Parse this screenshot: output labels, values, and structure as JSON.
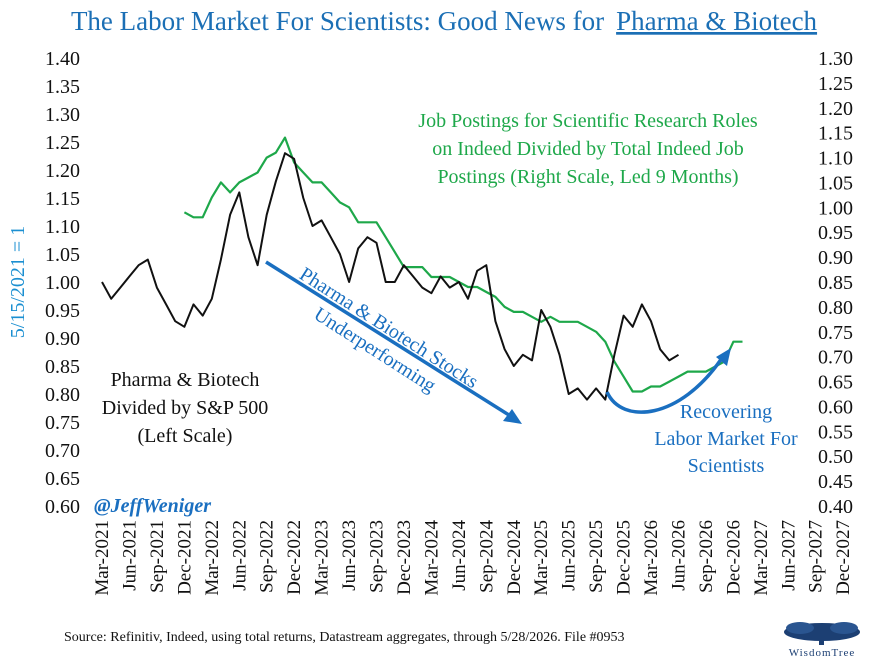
{
  "header": {
    "title": "The Labor Market For Scientists: Good News for",
    "title_link": "Pharma & Biotech"
  },
  "axes": {
    "left_label": "5/15/2021 = 1",
    "left_ticks": [
      "1.40",
      "1.35",
      "1.30",
      "1.25",
      "1.20",
      "1.15",
      "1.10",
      "1.05",
      "1.00",
      "0.95",
      "0.90",
      "0.85",
      "0.80",
      "0.75",
      "0.70",
      "0.65",
      "0.60"
    ],
    "right_ticks": [
      "1.30",
      "1.25",
      "1.20",
      "1.15",
      "1.10",
      "1.05",
      "1.00",
      "0.95",
      "0.90",
      "0.85",
      "0.80",
      "0.75",
      "0.70",
      "0.65",
      "0.60",
      "0.55",
      "0.50",
      "0.45",
      "0.40"
    ],
    "x_ticks": [
      "Mar-2021",
      "Jun-2021",
      "Sep-2021",
      "Dec-2021",
      "Mar-2022",
      "Jun-2022",
      "Sep-2022",
      "Dec-2022",
      "Mar-2023",
      "Jun-2023",
      "Sep-2023",
      "Dec-2023",
      "Mar-2024",
      "Jun-2024",
      "Sep-2024",
      "Dec-2024",
      "Mar-2025",
      "Jun-2025",
      "Sep-2025",
      "Dec-2025",
      "Mar-2026",
      "Jun-2026",
      "Sep-2026",
      "Dec-2026",
      "Mar-2027",
      "Jun-2027",
      "Sep-2027",
      "Dec-2027"
    ]
  },
  "annotations": {
    "black_label": [
      "Pharma & Biotech",
      "Divided by S&P 500",
      "(Left Scale)"
    ],
    "green_label": [
      "Job Postings for Scientific Research Roles",
      "on Indeed Divided by Total Indeed Job",
      "Postings (Right Scale, Led 9 Months)"
    ],
    "arrow_label": [
      "Pharma & Biotech Stocks",
      "Underperforming"
    ],
    "recover_label": [
      "Recovering",
      "Labor Market For",
      "Scientists"
    ],
    "handle": "@JeffWeniger"
  },
  "footer": {
    "source": "Source: Refinitiv, Indeed, using total returns, Datastream aggregates, through 5/28/2026. File #0953",
    "logo": "WisdomTree"
  },
  "colors": {
    "title": "#1b6fb5",
    "pharma_series": "#111111",
    "jobs_series": "#1ea84a",
    "arrows": "#1a6fc0"
  },
  "chart_data": {
    "type": "line",
    "x_unit": "month",
    "x_range": [
      "2021-03",
      "2027-12"
    ],
    "left_axis": {
      "ylim": [
        0.6,
        1.4
      ],
      "label": "5/15/2021 = 1"
    },
    "right_axis": {
      "ylim": [
        0.4,
        1.3
      ]
    },
    "grid": false,
    "series": [
      {
        "name": "Pharma & Biotech Divided by S&P 500 (Left Scale)",
        "axis": "left",
        "color": "#111111",
        "points": [
          [
            "2021-03",
            1.0
          ],
          [
            "2021-04",
            0.97
          ],
          [
            "2021-05",
            0.99
          ],
          [
            "2021-06",
            1.01
          ],
          [
            "2021-07",
            1.03
          ],
          [
            "2021-08",
            1.04
          ],
          [
            "2021-09",
            0.99
          ],
          [
            "2021-10",
            0.96
          ],
          [
            "2021-11",
            0.93
          ],
          [
            "2021-12",
            0.92
          ],
          [
            "2022-01",
            0.96
          ],
          [
            "2022-02",
            0.94
          ],
          [
            "2022-03",
            0.97
          ],
          [
            "2022-04",
            1.04
          ],
          [
            "2022-05",
            1.12
          ],
          [
            "2022-06",
            1.16
          ],
          [
            "2022-07",
            1.08
          ],
          [
            "2022-08",
            1.03
          ],
          [
            "2022-09",
            1.12
          ],
          [
            "2022-10",
            1.18
          ],
          [
            "2022-11",
            1.23
          ],
          [
            "2022-12",
            1.22
          ],
          [
            "2023-01",
            1.15
          ],
          [
            "2023-02",
            1.1
          ],
          [
            "2023-03",
            1.11
          ],
          [
            "2023-04",
            1.08
          ],
          [
            "2023-05",
            1.05
          ],
          [
            "2023-06",
            1.0
          ],
          [
            "2023-07",
            1.06
          ],
          [
            "2023-08",
            1.08
          ],
          [
            "2023-09",
            1.07
          ],
          [
            "2023-10",
            1.0
          ],
          [
            "2023-11",
            1.0
          ],
          [
            "2023-12",
            1.03
          ],
          [
            "2024-01",
            1.01
          ],
          [
            "2024-02",
            0.99
          ],
          [
            "2024-03",
            0.98
          ],
          [
            "2024-04",
            1.01
          ],
          [
            "2024-05",
            0.99
          ],
          [
            "2024-06",
            1.0
          ],
          [
            "2024-07",
            0.97
          ],
          [
            "2024-08",
            1.02
          ],
          [
            "2024-09",
            1.03
          ],
          [
            "2024-10",
            0.93
          ],
          [
            "2024-11",
            0.88
          ],
          [
            "2024-12",
            0.85
          ],
          [
            "2025-01",
            0.87
          ],
          [
            "2025-02",
            0.86
          ],
          [
            "2025-03",
            0.95
          ],
          [
            "2025-04",
            0.92
          ],
          [
            "2025-05",
            0.87
          ],
          [
            "2025-06",
            0.8
          ],
          [
            "2025-07",
            0.81
          ],
          [
            "2025-08",
            0.79
          ],
          [
            "2025-09",
            0.81
          ],
          [
            "2025-10",
            0.79
          ],
          [
            "2025-11",
            0.87
          ],
          [
            "2025-12",
            0.94
          ],
          [
            "2026-01",
            0.92
          ],
          [
            "2026-02",
            0.96
          ],
          [
            "2026-03",
            0.93
          ],
          [
            "2026-04",
            0.88
          ],
          [
            "2026-05",
            0.86
          ],
          [
            "2026-06",
            0.87
          ]
        ]
      },
      {
        "name": "Job Postings for Scientific Research Roles on Indeed Divided by Total Indeed Job Postings (Right Scale, Led 9 Months)",
        "axis": "right",
        "color": "#1ea84a",
        "points": [
          [
            "2021-12",
            0.99
          ],
          [
            "2022-01",
            0.98
          ],
          [
            "2022-02",
            0.98
          ],
          [
            "2022-03",
            1.02
          ],
          [
            "2022-04",
            1.05
          ],
          [
            "2022-05",
            1.03
          ],
          [
            "2022-06",
            1.05
          ],
          [
            "2022-07",
            1.06
          ],
          [
            "2022-08",
            1.07
          ],
          [
            "2022-09",
            1.1
          ],
          [
            "2022-10",
            1.11
          ],
          [
            "2022-11",
            1.14
          ],
          [
            "2022-12",
            1.09
          ],
          [
            "2023-01",
            1.07
          ],
          [
            "2023-02",
            1.05
          ],
          [
            "2023-03",
            1.05
          ],
          [
            "2023-04",
            1.03
          ],
          [
            "2023-05",
            1.01
          ],
          [
            "2023-06",
            1.0
          ],
          [
            "2023-07",
            0.97
          ],
          [
            "2023-08",
            0.97
          ],
          [
            "2023-09",
            0.97
          ],
          [
            "2023-10",
            0.94
          ],
          [
            "2023-11",
            0.91
          ],
          [
            "2023-12",
            0.88
          ],
          [
            "2024-01",
            0.88
          ],
          [
            "2024-02",
            0.88
          ],
          [
            "2024-03",
            0.86
          ],
          [
            "2024-04",
            0.86
          ],
          [
            "2024-05",
            0.86
          ],
          [
            "2024-06",
            0.85
          ],
          [
            "2024-07",
            0.84
          ],
          [
            "2024-08",
            0.84
          ],
          [
            "2024-09",
            0.83
          ],
          [
            "2024-10",
            0.82
          ],
          [
            "2024-11",
            0.8
          ],
          [
            "2024-12",
            0.79
          ],
          [
            "2025-01",
            0.79
          ],
          [
            "2025-02",
            0.78
          ],
          [
            "2025-03",
            0.77
          ],
          [
            "2025-04",
            0.78
          ],
          [
            "2025-05",
            0.77
          ],
          [
            "2025-06",
            0.77
          ],
          [
            "2025-07",
            0.77
          ],
          [
            "2025-08",
            0.76
          ],
          [
            "2025-09",
            0.75
          ],
          [
            "2025-10",
            0.73
          ],
          [
            "2025-11",
            0.69
          ],
          [
            "2025-12",
            0.66
          ],
          [
            "2026-01",
            0.63
          ],
          [
            "2026-02",
            0.63
          ],
          [
            "2026-03",
            0.64
          ],
          [
            "2026-04",
            0.64
          ],
          [
            "2026-05",
            0.65
          ],
          [
            "2026-06",
            0.66
          ],
          [
            "2026-07",
            0.67
          ],
          [
            "2026-08",
            0.67
          ],
          [
            "2026-09",
            0.67
          ],
          [
            "2026-10",
            0.68
          ],
          [
            "2026-11",
            0.69
          ],
          [
            "2026-12",
            0.73
          ],
          [
            "2027-01",
            0.73
          ]
        ]
      }
    ]
  }
}
